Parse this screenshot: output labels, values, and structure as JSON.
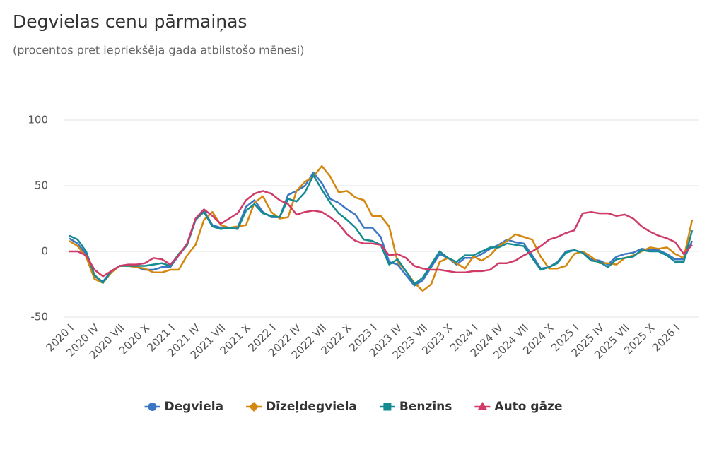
{
  "chart_data": {
    "type": "line",
    "title": "Degvielas cenu pārmaiņas",
    "subtitle": "(procentos pret iepriekšēja gada atbilstošo mēnesi)",
    "categories": [
      "2020 I",
      null,
      null,
      "2020 IV",
      null,
      null,
      "2020 VII",
      null,
      null,
      "2020 X",
      null,
      null,
      "2021 I",
      null,
      null,
      "2021 IV",
      null,
      null,
      "2021 VII",
      null,
      null,
      "2021 X",
      null,
      null,
      "2022 I",
      null,
      null,
      "2022 IV",
      null,
      null,
      "2022 VII",
      null,
      null,
      "2022 X",
      null,
      null,
      "2023 I",
      null,
      null,
      "2023 IV",
      null,
      null,
      "2023 VII",
      null,
      null,
      "2023 X",
      null,
      null,
      "2024 I",
      null,
      null,
      "2024 IV",
      null,
      null,
      "2024 VII",
      null,
      null,
      "2024 X",
      null,
      null,
      "2025 I",
      null,
      null,
      "2025 IV",
      null,
      null,
      "2025 VII",
      null,
      null,
      "2025 X",
      null,
      null,
      "2026 I",
      null,
      null
    ],
    "series": [
      {
        "name": "Degviela",
        "color": "#3a76c4",
        "marker": "circle",
        "values": [
          10,
          6,
          -2,
          -19,
          -23,
          -15,
          -11,
          -11,
          -12,
          -14,
          -14,
          -12,
          -12,
          -3,
          5,
          24,
          31,
          20,
          18,
          18,
          18,
          34,
          39,
          30,
          26,
          26,
          43,
          46,
          50,
          60,
          52,
          40,
          37,
          32,
          28,
          18,
          18,
          11,
          -8,
          -10,
          -18,
          -26,
          -22,
          -12,
          -2,
          -5,
          -10,
          -5,
          -5,
          -2,
          2,
          5,
          9,
          7,
          6,
          -3,
          -13,
          -12,
          -8,
          0,
          1,
          -1,
          -6,
          -7,
          -10,
          -4,
          -2,
          -1,
          2,
          1,
          1,
          -2,
          -6,
          -6,
          8
        ]
      },
      {
        "name": "Dīzeļdegviela",
        "color": "#d4870e",
        "marker": "diamond",
        "values": [
          8,
          4,
          -4,
          -21,
          -24,
          -16,
          -11,
          -11,
          -12,
          -13,
          -16,
          -16,
          -14,
          -14,
          -3,
          5,
          24,
          30,
          20,
          18,
          19,
          20,
          37,
          42,
          30,
          25,
          26,
          46,
          53,
          57,
          65,
          57,
          45,
          46,
          41,
          39,
          27,
          27,
          19,
          -8,
          -15,
          -24,
          -30,
          -25,
          -8,
          -5,
          -9,
          -13,
          -4,
          -7,
          -3,
          4,
          8,
          13,
          11,
          9,
          -4,
          -13,
          -13,
          -11,
          -2,
          0,
          -4,
          -9,
          -9,
          -10,
          -5,
          -3,
          0,
          3,
          2,
          3,
          -2,
          -5,
          24
        ]
      },
      {
        "name": "Benzīns",
        "color": "#138b91",
        "marker": "square",
        "values": [
          12,
          9,
          0,
          -18,
          -24,
          -15,
          -11,
          -11,
          -11,
          -11,
          -10,
          -9,
          -11,
          -2,
          5,
          24,
          30,
          19,
          17,
          18,
          17,
          31,
          36,
          29,
          27,
          26,
          40,
          38,
          45,
          58,
          47,
          37,
          29,
          24,
          18,
          9,
          8,
          5,
          -10,
          -6,
          -15,
          -25,
          -20,
          -10,
          0,
          -5,
          -8,
          -3,
          -3,
          0,
          3,
          3,
          6,
          5,
          4,
          -5,
          -14,
          -12,
          -9,
          -1,
          1,
          -1,
          -7,
          -8,
          -12,
          -6,
          -5,
          -4,
          1,
          0,
          0,
          -3,
          -8,
          -8,
          16
        ]
      },
      {
        "name": "Auto gāze",
        "color": "#cf3b66",
        "marker": "triangle",
        "values": [
          0,
          0,
          -3,
          -14,
          -19,
          -15,
          -11,
          -10,
          -10,
          -9,
          -5,
          -6,
          -10,
          -3,
          6,
          25,
          32,
          27,
          21,
          25,
          29,
          39,
          44,
          46,
          44,
          39,
          36,
          28,
          30,
          31,
          30,
          26,
          21,
          13,
          8,
          6,
          6,
          5,
          -3,
          -2,
          -5,
          -11,
          -13,
          -14,
          -14,
          -15,
          -16,
          -16,
          -15,
          -15,
          -14,
          -9,
          -9,
          -7,
          -3,
          0,
          4,
          9,
          11,
          14,
          16,
          29,
          30,
          29,
          29,
          27,
          28,
          25,
          19,
          15,
          12,
          10,
          7,
          -2,
          5
        ]
      }
    ],
    "ylim": [
      -50,
      100
    ],
    "yticks": [
      -50,
      0,
      50,
      100
    ],
    "grid": true
  }
}
